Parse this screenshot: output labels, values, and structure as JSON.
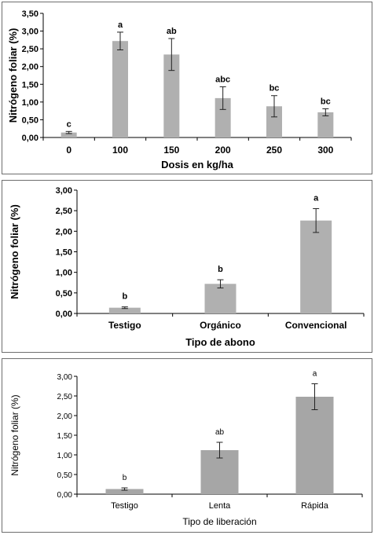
{
  "chart_data": [
    {
      "type": "bar",
      "title": "",
      "xlabel": "Dosis en kg/ha",
      "ylabel": "Nitrógeno foliar (%)",
      "categories": [
        "0",
        "100",
        "150",
        "200",
        "250",
        "300"
      ],
      "values": [
        0.14,
        2.72,
        2.34,
        1.11,
        0.88,
        0.71
      ],
      "error": [
        0.03,
        0.25,
        0.45,
        0.32,
        0.3,
        0.1
      ],
      "labels": [
        "c",
        "a",
        "ab",
        "abc",
        "bc",
        "bc"
      ],
      "yticks": [
        "0,00",
        "0,50",
        "1,00",
        "1,50",
        "2,00",
        "2,50",
        "3,00",
        "3,50"
      ],
      "ylim": [
        0,
        3.5
      ],
      "grid": false,
      "bar_color": "#b0b0b0"
    },
    {
      "type": "bar",
      "title": "",
      "xlabel": "Tipo de abono",
      "ylabel": "Nitrógeno foliar (%)",
      "categories": [
        "Testigo",
        "Orgánico",
        "Convencional"
      ],
      "values": [
        0.14,
        0.72,
        2.26
      ],
      "error": [
        0.02,
        0.1,
        0.29
      ],
      "labels": [
        "b",
        "b",
        "a"
      ],
      "yticks": [
        "0,00",
        "0,50",
        "1,00",
        "1,50",
        "2,00",
        "2,50",
        "3,00"
      ],
      "ylim": [
        0,
        3.0
      ],
      "grid": false,
      "bar_color": "#b0b0b0"
    },
    {
      "type": "bar",
      "title": "",
      "xlabel": "Tipo de liberación",
      "ylabel": "Nitrógeno foliar (%)",
      "categories": [
        "Testigo",
        "Lenta",
        "Rápida"
      ],
      "values": [
        0.13,
        1.12,
        2.48
      ],
      "error": [
        0.03,
        0.2,
        0.33
      ],
      "labels": [
        "b",
        "ab",
        "a"
      ],
      "yticks": [
        "0,00",
        "0,50",
        "1,00",
        "1,50",
        "2,00",
        "2,50",
        "3,00"
      ],
      "ylim": [
        0,
        3.0
      ],
      "grid": false,
      "bar_color": "#a6a6a6"
    }
  ]
}
